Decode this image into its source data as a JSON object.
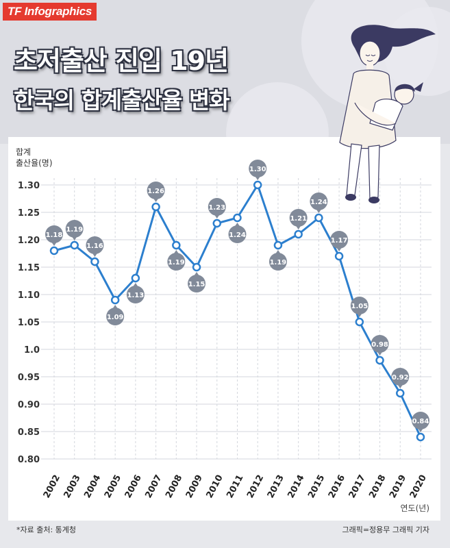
{
  "brand": "TF Infographics",
  "title_line1": "초저출산 진입 19년",
  "title_line2": "한국의 합계출산율 변화",
  "ylabel_line1": "합계",
  "ylabel_line2": "출산율(명)",
  "xunit": "연도(년)",
  "source": "*자료 출처: 통계청",
  "credit": "그래픽=정용무 그래픽 기자",
  "colors": {
    "line": "#2c7fce",
    "badge": "#818a99",
    "grid": "#d3d6dc",
    "brand": "#e53a2f"
  },
  "chart_data": {
    "type": "line",
    "x": [
      "2002",
      "2003",
      "2004",
      "2005",
      "2006",
      "2007",
      "2008",
      "2009",
      "2010",
      "2011",
      "2012",
      "2013",
      "2014",
      "2015",
      "2016",
      "2017",
      "2018",
      "2019",
      "2020"
    ],
    "values": [
      1.18,
      1.19,
      1.16,
      1.09,
      1.13,
      1.26,
      1.19,
      1.15,
      1.23,
      1.24,
      1.3,
      1.19,
      1.21,
      1.24,
      1.17,
      1.05,
      0.98,
      0.92,
      0.84
    ],
    "labels": [
      "1.18",
      "1.19",
      "1.16",
      "1.09",
      "1.13",
      "1.26",
      "1.19",
      "1.15",
      "1.23",
      "1.24",
      "1.30",
      "1.19",
      "1.21",
      "1.24",
      "1.17",
      "1.05",
      "0.98",
      "0.92",
      "0.84"
    ],
    "label_positions": [
      "above",
      "above",
      "above",
      "below",
      "below",
      "above",
      "below",
      "below",
      "above",
      "below",
      "above",
      "below",
      "above",
      "above",
      "above",
      "above",
      "above",
      "above",
      "above"
    ],
    "yticks": [
      0.8,
      0.85,
      0.9,
      0.95,
      1.0,
      1.05,
      1.1,
      1.15,
      1.2,
      1.25,
      1.3
    ],
    "ytick_labels": [
      "0.80",
      "0.85",
      "0.90",
      "0.95",
      "1.0",
      "1.05",
      "1.10",
      "1.15",
      "1.20",
      "1.25",
      "1.30"
    ],
    "ylim": [
      0.8,
      1.3
    ],
    "xlabel": "연도(년)",
    "ylabel": "합계 출산율(명)",
    "grid": true
  }
}
